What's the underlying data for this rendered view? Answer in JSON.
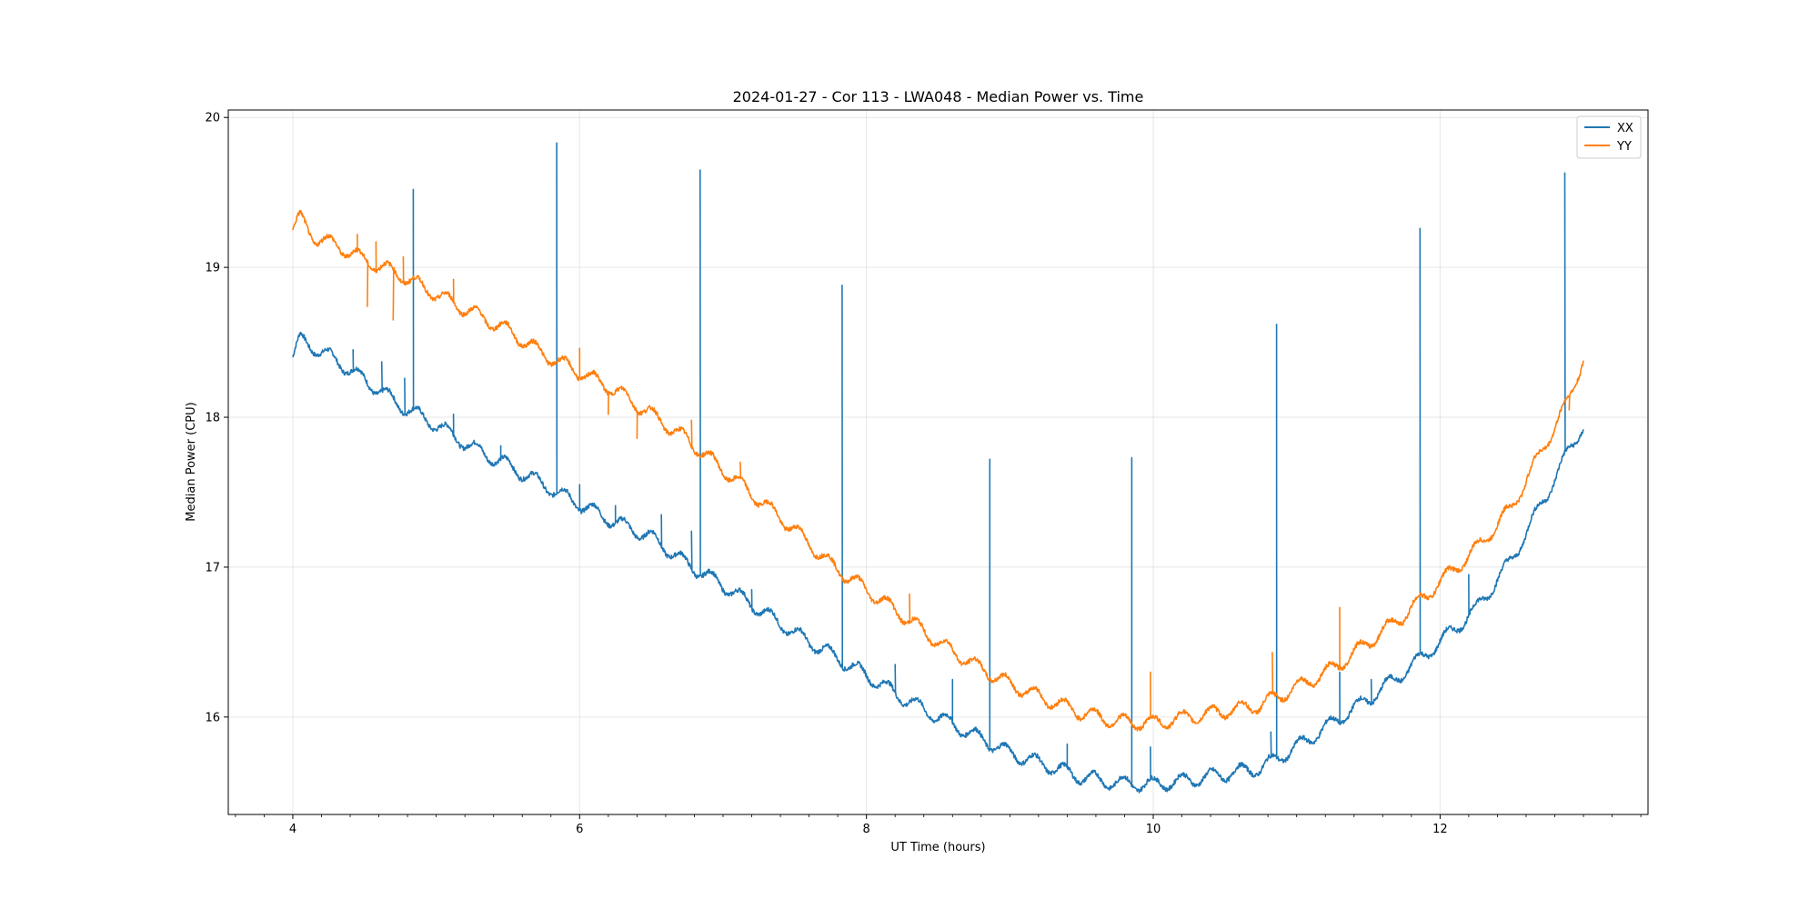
{
  "chart_data": {
    "type": "line",
    "title": "2024-01-27 - Cor 113 - LWA048 - Median Power vs. Time",
    "xlabel": "UT Time (hours)",
    "ylabel": "Median Power (CPU)",
    "xlim": [
      3.55,
      13.45
    ],
    "ylim": [
      15.35,
      20.05
    ],
    "grid": true,
    "legend_position": "top-right",
    "x_ticks": [
      4,
      6,
      8,
      10,
      12
    ],
    "x_tick_labels": [
      "4",
      "6",
      "8",
      "10",
      "12"
    ],
    "x_minor_step": 0.2,
    "y_ticks": [
      16,
      17,
      18,
      19,
      20
    ],
    "y_tick_labels": [
      "16",
      "17",
      "18",
      "19",
      "20"
    ],
    "series": [
      {
        "name": "XX",
        "color": "#1f77b4",
        "x": [
          4.0,
          4.05,
          4.3,
          4.5,
          4.75,
          5.0,
          5.25,
          5.5,
          5.75,
          6.0,
          6.25,
          6.5,
          6.75,
          7.0,
          7.25,
          7.5,
          7.75,
          8.0,
          8.25,
          8.5,
          8.75,
          9.0,
          9.25,
          9.5,
          9.75,
          10.0,
          10.25,
          10.5,
          10.75,
          11.0,
          11.25,
          11.5,
          11.75,
          12.0,
          12.25,
          12.5,
          12.75,
          12.9,
          13.0
        ],
        "y": [
          18.4,
          18.52,
          18.38,
          18.25,
          18.08,
          17.95,
          17.8,
          17.68,
          17.55,
          17.42,
          17.3,
          17.2,
          17.02,
          16.88,
          16.72,
          16.56,
          16.42,
          16.28,
          16.13,
          16.0,
          15.88,
          15.76,
          15.68,
          15.6,
          15.56,
          15.55,
          15.58,
          15.62,
          15.66,
          15.8,
          15.96,
          16.12,
          16.3,
          16.5,
          16.72,
          17.05,
          17.5,
          17.78,
          17.95
        ],
        "spikes": [
          {
            "x": 4.42,
            "y": 18.45
          },
          {
            "x": 4.62,
            "y": 18.37
          },
          {
            "x": 4.78,
            "y": 18.26
          },
          {
            "x": 4.84,
            "y": 19.52
          },
          {
            "x": 5.12,
            "y": 18.02
          },
          {
            "x": 5.45,
            "y": 17.81
          },
          {
            "x": 5.84,
            "y": 19.83
          },
          {
            "x": 6.0,
            "y": 17.55
          },
          {
            "x": 6.25,
            "y": 17.41
          },
          {
            "x": 6.57,
            "y": 17.35
          },
          {
            "x": 6.78,
            "y": 17.24
          },
          {
            "x": 6.84,
            "y": 19.65
          },
          {
            "x": 7.2,
            "y": 16.85
          },
          {
            "x": 7.83,
            "y": 18.88
          },
          {
            "x": 8.2,
            "y": 16.35
          },
          {
            "x": 8.6,
            "y": 16.25
          },
          {
            "x": 8.86,
            "y": 17.72
          },
          {
            "x": 9.4,
            "y": 15.82
          },
          {
            "x": 9.85,
            "y": 17.73
          },
          {
            "x": 9.98,
            "y": 15.8
          },
          {
            "x": 10.82,
            "y": 15.9
          },
          {
            "x": 10.86,
            "y": 18.62
          },
          {
            "x": 11.3,
            "y": 16.3
          },
          {
            "x": 11.52,
            "y": 16.25
          },
          {
            "x": 11.86,
            "y": 19.26
          },
          {
            "x": 12.2,
            "y": 16.95
          },
          {
            "x": 12.87,
            "y": 19.63
          }
        ]
      },
      {
        "name": "YY",
        "color": "#ff7f0e",
        "x": [
          4.0,
          4.05,
          4.15,
          4.3,
          4.5,
          4.75,
          5.0,
          5.25,
          5.5,
          5.75,
          6.0,
          6.25,
          6.5,
          6.75,
          7.0,
          7.25,
          7.5,
          7.75,
          8.0,
          8.25,
          8.5,
          8.75,
          9.0,
          9.25,
          9.5,
          9.75,
          10.0,
          10.25,
          10.5,
          10.75,
          11.0,
          11.25,
          11.5,
          11.75,
          12.0,
          12.25,
          12.5,
          12.75,
          12.9,
          13.0
        ],
        "y": [
          19.25,
          19.33,
          19.2,
          19.15,
          19.05,
          18.95,
          18.82,
          18.7,
          18.58,
          18.42,
          18.3,
          18.18,
          18.02,
          17.85,
          17.65,
          17.45,
          17.25,
          17.02,
          16.85,
          16.68,
          16.5,
          16.35,
          16.22,
          16.12,
          16.03,
          15.97,
          15.96,
          16.0,
          16.04,
          16.08,
          16.2,
          16.32,
          16.5,
          16.68,
          16.9,
          17.12,
          17.4,
          17.85,
          18.12,
          18.4
        ],
        "spikes": [
          {
            "x": 4.45,
            "y": 19.22
          },
          {
            "x": 4.52,
            "y": 18.74
          },
          {
            "x": 4.58,
            "y": 19.17
          },
          {
            "x": 4.7,
            "y": 18.65
          },
          {
            "x": 4.77,
            "y": 19.07
          },
          {
            "x": 5.12,
            "y": 18.92
          },
          {
            "x": 6.0,
            "y": 18.46
          },
          {
            "x": 6.2,
            "y": 18.02
          },
          {
            "x": 6.4,
            "y": 17.86
          },
          {
            "x": 6.78,
            "y": 17.98
          },
          {
            "x": 7.12,
            "y": 17.7
          },
          {
            "x": 8.3,
            "y": 16.82
          },
          {
            "x": 9.98,
            "y": 16.3
          },
          {
            "x": 10.83,
            "y": 16.43
          },
          {
            "x": 11.3,
            "y": 16.73
          },
          {
            "x": 12.9,
            "y": 18.05
          }
        ]
      }
    ]
  }
}
